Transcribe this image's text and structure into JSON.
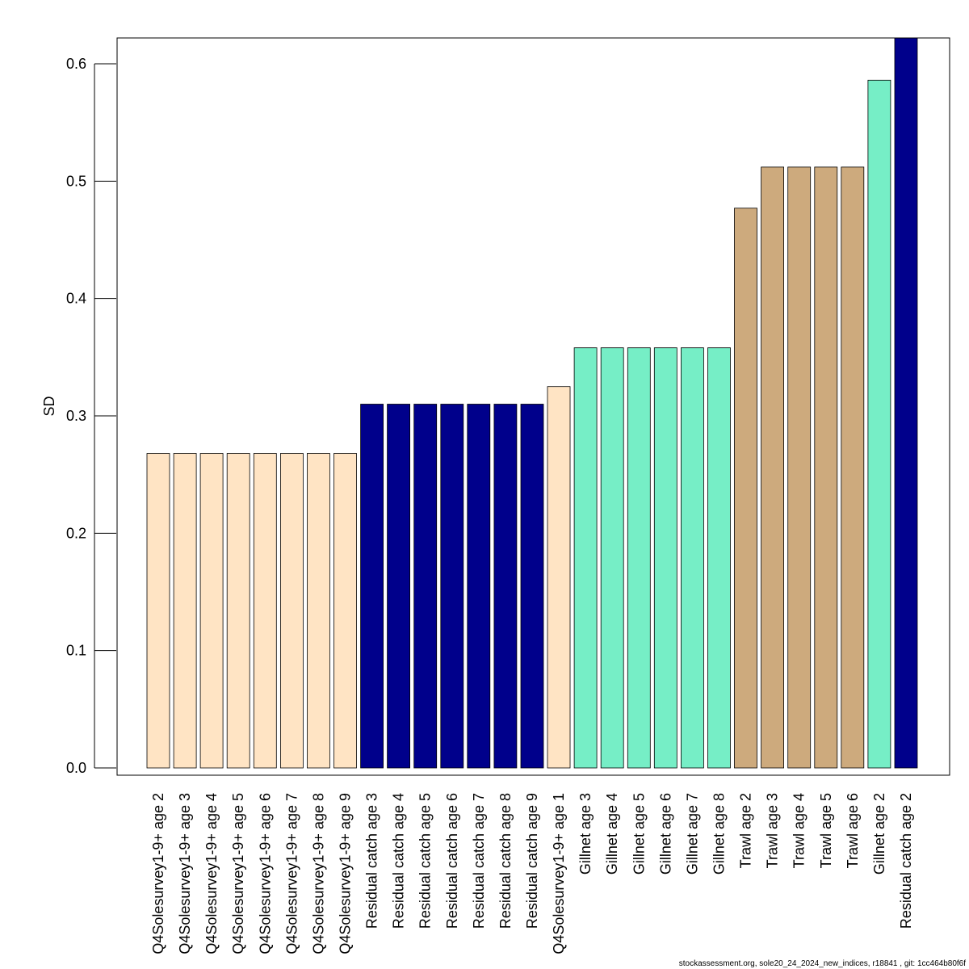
{
  "chart_data": {
    "type": "bar",
    "ylabel": "SD",
    "ylim": [
      0,
      0.62
    ],
    "yticks": [
      "0.0",
      "0.1",
      "0.2",
      "0.3",
      "0.4",
      "0.5",
      "0.6"
    ],
    "ytick_values": [
      0,
      0.1,
      0.2,
      0.3,
      0.4,
      0.5,
      0.6
    ],
    "grid": false,
    "categories": [
      "Q4Solesurvey1-9+ age 2",
      "Q4Solesurvey1-9+ age 3",
      "Q4Solesurvey1-9+ age 4",
      "Q4Solesurvey1-9+ age 5",
      "Q4Solesurvey1-9+ age 6",
      "Q4Solesurvey1-9+ age 7",
      "Q4Solesurvey1-9+ age 8",
      "Q4Solesurvey1-9+ age 9",
      "Residual catch age 3",
      "Residual catch age 4",
      "Residual catch age 5",
      "Residual catch age 6",
      "Residual catch age 7",
      "Residual catch age 8",
      "Residual catch age 9",
      "Q4Solesurvey1-9+ age 1",
      "Gillnet age 3",
      "Gillnet age 4",
      "Gillnet age 5",
      "Gillnet age 6",
      "Gillnet age 7",
      "Gillnet age 8",
      "Trawl age 2",
      "Trawl age 3",
      "Trawl age 4",
      "Trawl age 5",
      "Trawl age 6",
      "Gillnet age 2",
      "Residual catch age 2"
    ],
    "values": [
      0.268,
      0.268,
      0.268,
      0.268,
      0.268,
      0.268,
      0.268,
      0.268,
      0.31,
      0.31,
      0.31,
      0.31,
      0.31,
      0.31,
      0.31,
      0.325,
      0.358,
      0.358,
      0.358,
      0.358,
      0.358,
      0.358,
      0.477,
      0.512,
      0.512,
      0.512,
      0.512,
      0.586,
      0.63
    ],
    "colors": [
      "#FFE4C4",
      "#FFE4C4",
      "#FFE4C4",
      "#FFE4C4",
      "#FFE4C4",
      "#FFE4C4",
      "#FFE4C4",
      "#FFE4C4",
      "#00008B",
      "#00008B",
      "#00008B",
      "#00008B",
      "#00008B",
      "#00008B",
      "#00008B",
      "#FFE4C4",
      "#76EEC6",
      "#76EEC6",
      "#76EEC6",
      "#76EEC6",
      "#76EEC6",
      "#76EEC6",
      "#CDAA7D",
      "#CDAA7D",
      "#CDAA7D",
      "#CDAA7D",
      "#CDAA7D",
      "#76EEC6",
      "#00008B"
    ]
  },
  "footer": "stockassessment.org, sole20_24_2024_new_indices, r18841 , git: 1cc464b80f6f"
}
